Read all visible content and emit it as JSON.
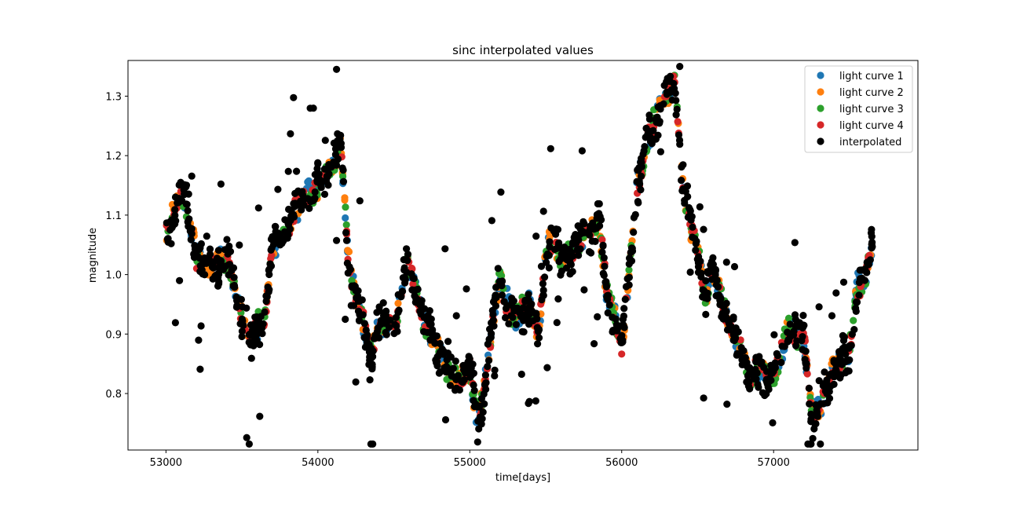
{
  "chart_data": {
    "type": "scatter",
    "title": "sinc interpolated values",
    "xlabel": "time[days]",
    "ylabel": "magnitude",
    "xlim": [
      52750,
      57950
    ],
    "ylim": [
      0.705,
      1.36
    ],
    "xticks": [
      53000,
      54000,
      55000,
      56000,
      57000
    ],
    "yticks": [
      0.8,
      0.9,
      1.0,
      1.1,
      1.2,
      1.3
    ],
    "xtick_labels": [
      "53000",
      "54000",
      "55000",
      "56000",
      "57000"
    ],
    "ytick_labels": [
      "0.8",
      "0.9",
      "1.0",
      "1.1",
      "1.2",
      "1.3"
    ],
    "grid": false,
    "legend_position": "top-right",
    "curve_shape": {
      "x": [
        53000,
        53050,
        53100,
        53150,
        53200,
        53300,
        53400,
        53500,
        53550,
        53650,
        53700,
        53800,
        53900,
        54000,
        54100,
        54150,
        54200,
        54250,
        54300,
        54350,
        54400,
        54500,
        54550,
        54600,
        54700,
        54800,
        54900,
        55000,
        55050,
        55100,
        55150,
        55200,
        55250,
        55300,
        55400,
        55450,
        55500,
        55550,
        55600,
        55700,
        55800,
        55850,
        55900,
        55950,
        56000,
        56050,
        56100,
        56150,
        56200,
        56250,
        56300,
        56350,
        56400,
        56450,
        56500,
        56550,
        56600,
        56700,
        56800,
        56850,
        56900,
        57000,
        57050,
        57100,
        57200,
        57250,
        57300,
        57350,
        57400,
        57500,
        57550,
        57600,
        57650
      ],
      "y": [
        1.05,
        1.1,
        1.14,
        1.1,
        1.03,
        1.01,
        1.03,
        0.93,
        0.89,
        0.93,
        1.05,
        1.08,
        1.13,
        1.15,
        1.18,
        1.23,
        1.02,
        0.97,
        0.92,
        0.86,
        0.92,
        0.91,
        0.97,
        1.02,
        0.92,
        0.87,
        0.82,
        0.84,
        0.75,
        0.82,
        0.92,
        0.99,
        0.95,
        0.93,
        0.95,
        0.89,
        1.03,
        1.07,
        1.02,
        1.05,
        1.07,
        1.09,
        0.97,
        0.93,
        0.88,
        1.0,
        1.14,
        1.21,
        1.24,
        1.28,
        1.31,
        1.32,
        1.16,
        1.08,
        1.04,
        0.96,
        1.01,
        0.92,
        0.86,
        0.83,
        0.84,
        0.83,
        0.87,
        0.91,
        0.89,
        0.76,
        0.78,
        0.8,
        0.85,
        0.86,
        0.98,
        0.99,
        1.06
      ]
    },
    "series": [
      {
        "name": "light curve 1",
        "color": "#1f77b4",
        "points": 260,
        "noise": 0.012,
        "seed": 11
      },
      {
        "name": "light curve 2",
        "color": "#ff7f0e",
        "points": 260,
        "noise": 0.012,
        "seed": 23
      },
      {
        "name": "light curve 3",
        "color": "#2ca02c",
        "points": 260,
        "noise": 0.013,
        "seed": 37
      },
      {
        "name": "light curve 4",
        "color": "#d62728",
        "points": 300,
        "noise": 0.013,
        "seed": 51
      },
      {
        "name": "interpolated",
        "color": "#000000",
        "points": 1050,
        "noise": 0.03,
        "outlier_points": 70,
        "seed": 97
      }
    ]
  }
}
